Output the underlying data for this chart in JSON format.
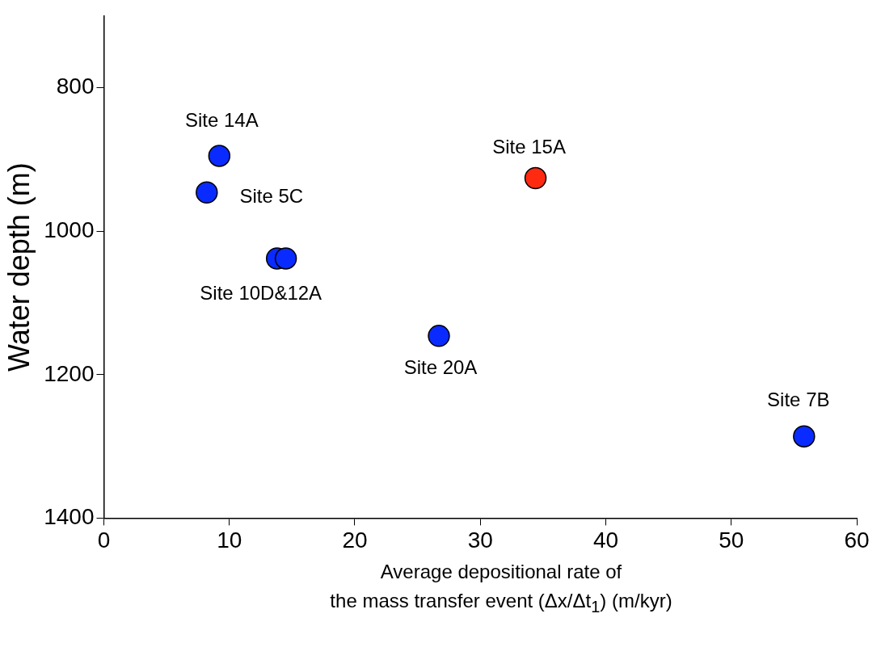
{
  "chart_data": {
    "type": "scatter",
    "xlabel": "Average depositional rate of\nthe mass transfer event (Δx/Δt$_{1}$) (m/kyr)",
    "ylabel": "Water depth (m)",
    "xlim": [
      0,
      60
    ],
    "xticks": [
      0,
      10,
      20,
      30,
      40,
      50,
      60
    ],
    "ylim": [
      1400,
      700
    ],
    "yticks": [
      800,
      1000,
      1200,
      1400
    ],
    "marker": "circle",
    "legend": false,
    "series": [
      {
        "color": "#0a2bff",
        "x": [
          9.2,
          8.2,
          13.8,
          14.5,
          26.7,
          55.8
        ],
        "values": [
          895,
          946,
          1038,
          1038,
          1146,
          1286
        ]
      },
      {
        "color": "#ff2a10",
        "x": [
          34.4
        ],
        "values": [
          926
        ]
      }
    ],
    "annotations": [
      {
        "text": "Site 14A",
        "x": 9.2,
        "y": 895
      },
      {
        "text": "Site 5C",
        "x": 8.2,
        "y": 946
      },
      {
        "text": "Site 10D&12A",
        "x": 13.8,
        "y": 1038
      },
      {
        "text": "Site 20A",
        "x": 26.7,
        "y": 1146
      },
      {
        "text": "Site 7B",
        "x": 55.8,
        "y": 1286
      },
      {
        "text": "Site 15A",
        "x": 34.4,
        "y": 926
      }
    ]
  }
}
